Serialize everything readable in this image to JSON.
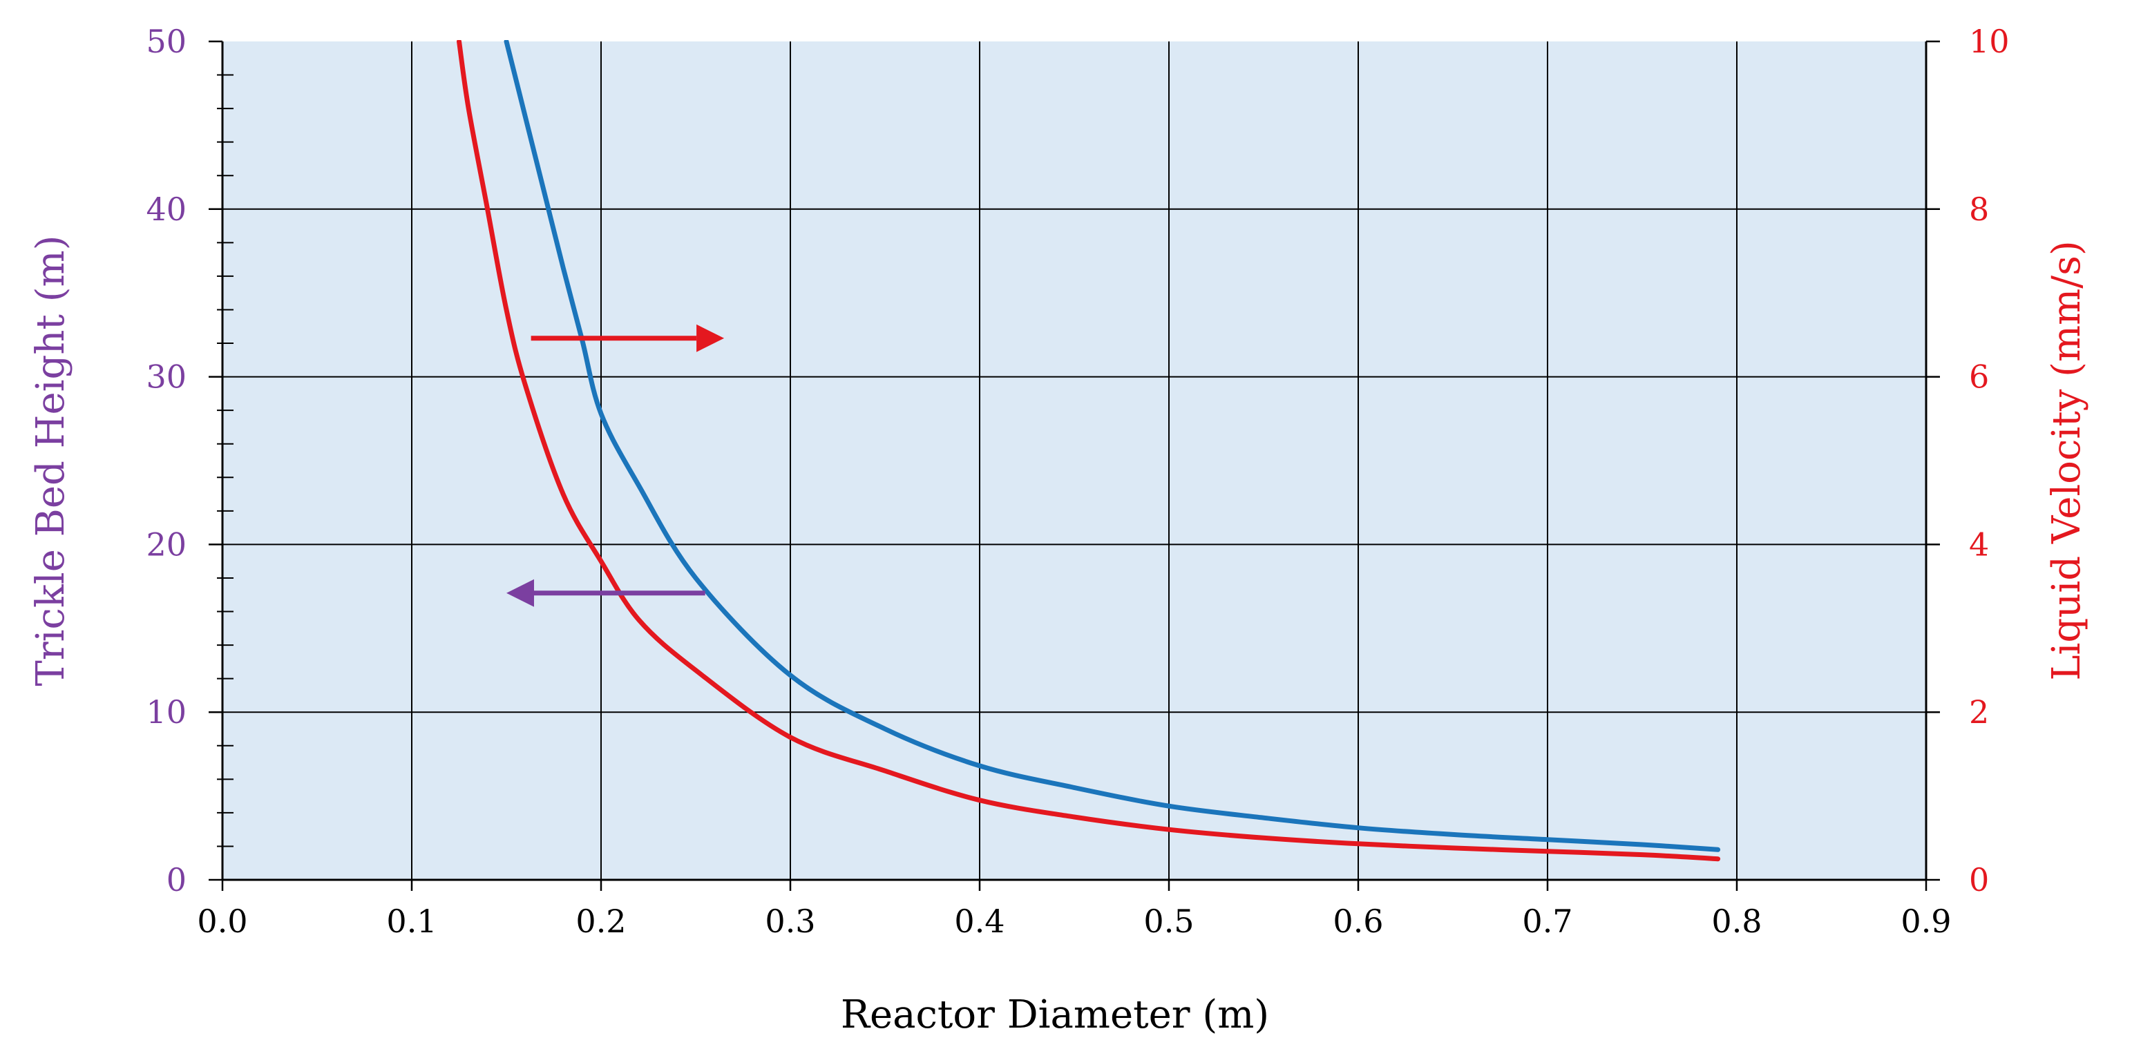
{
  "chart_data": {
    "type": "line",
    "title": "",
    "xlabel": "Reactor Diameter (m)",
    "ylabel_left": "Trickle Bed Height (m)",
    "ylabel_right": "Liquid Velocity (mm/s)",
    "xlim": [
      0.0,
      0.9
    ],
    "ylim_left": [
      0,
      50
    ],
    "ylim_right": [
      0,
      10
    ],
    "x_ticks": [
      "0.0",
      "0.1",
      "0.2",
      "0.3",
      "0.4",
      "0.5",
      "0.6",
      "0.7",
      "0.8",
      "0.9"
    ],
    "y_left_ticks": [
      "0",
      "10",
      "20",
      "30",
      "40",
      "50"
    ],
    "y_right_ticks": [
      "0",
      "2",
      "4",
      "6",
      "8",
      "10"
    ],
    "grid": true,
    "series": [
      {
        "axis": "left",
        "color": "#1b75bb",
        "points": [
          [
            0.15,
            50
          ],
          [
            0.16,
            45.5
          ],
          [
            0.17,
            41.0
          ],
          [
            0.18,
            36.5
          ],
          [
            0.19,
            32.2
          ],
          [
            0.2,
            27.8
          ],
          [
            0.22,
            23.5
          ],
          [
            0.25,
            18.0
          ],
          [
            0.3,
            12.2
          ],
          [
            0.35,
            9.0
          ],
          [
            0.4,
            6.8
          ],
          [
            0.45,
            5.5
          ],
          [
            0.5,
            4.4
          ],
          [
            0.55,
            3.7
          ],
          [
            0.6,
            3.1
          ],
          [
            0.65,
            2.7
          ],
          [
            0.7,
            2.4
          ],
          [
            0.75,
            2.1
          ],
          [
            0.79,
            1.8
          ]
        ]
      },
      {
        "axis": "right",
        "color": "#e4181f",
        "points": [
          [
            0.125,
            10.0
          ],
          [
            0.13,
            9.2
          ],
          [
            0.14,
            8.0
          ],
          [
            0.15,
            6.8
          ],
          [
            0.16,
            5.9
          ],
          [
            0.18,
            4.6
          ],
          [
            0.2,
            3.8
          ],
          [
            0.22,
            3.1
          ],
          [
            0.25,
            2.5
          ],
          [
            0.3,
            1.7
          ],
          [
            0.35,
            1.3
          ],
          [
            0.4,
            0.95
          ],
          [
            0.45,
            0.75
          ],
          [
            0.5,
            0.6
          ],
          [
            0.55,
            0.5
          ],
          [
            0.6,
            0.43
          ],
          [
            0.65,
            0.38
          ],
          [
            0.7,
            0.34
          ],
          [
            0.75,
            0.3
          ],
          [
            0.79,
            0.25
          ]
        ]
      }
    ],
    "annotations": [
      {
        "type": "arrow",
        "direction": "right",
        "color": "#e4181f",
        "meaning": "red curve uses right axis",
        "x_from": 0.163,
        "x_to": 0.265,
        "y_left": 32.3
      },
      {
        "type": "arrow",
        "direction": "left",
        "color": "#7b3fa0",
        "meaning": "blue curve uses left axis",
        "x_from": 0.255,
        "x_to": 0.15,
        "y_left": 17.1
      }
    ],
    "colors": {
      "plot_background": "#dce9f5",
      "left_axis": "#7b3fa0",
      "right_axis": "#e4181f",
      "grid": "#000000"
    }
  }
}
